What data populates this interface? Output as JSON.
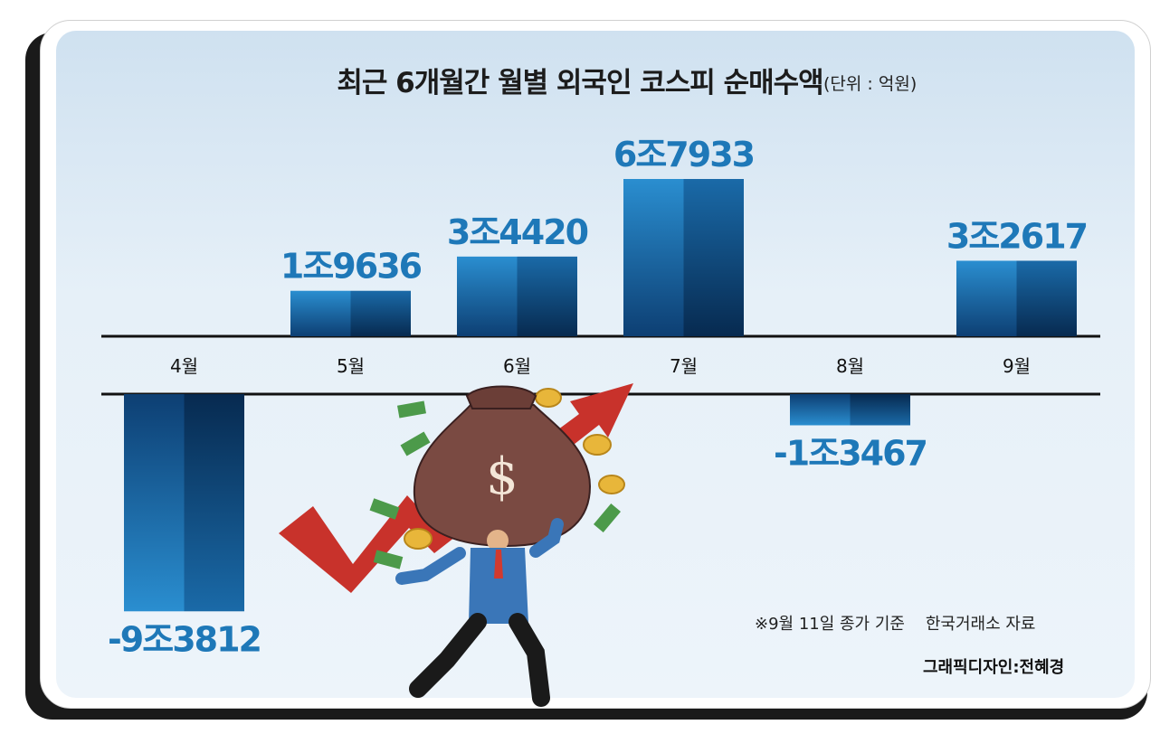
{
  "header": {
    "title": "최근 6개월간 월별 외국인 코스피 순매수액",
    "unit": "(단위 : 억원)"
  },
  "chart_data": {
    "type": "bar",
    "title": "최근 6개월간 월별 외국인 코스피 순매수액",
    "unit": "억원",
    "categories": [
      "4월",
      "5월",
      "6월",
      "7월",
      "8월",
      "9월"
    ],
    "values": [
      -93812,
      19636,
      34420,
      67933,
      -13467,
      32617
    ],
    "value_labels": [
      "-9조3812",
      "1조9636",
      "3조4420",
      "6조7933",
      "-1조3467",
      "3조2617"
    ],
    "colors": {
      "bar_light": "#2a86c8",
      "bar_dark": "#0b2d55",
      "label": "#1e78b8"
    }
  },
  "footer": {
    "note": "※9월 11일 종가 기준    한국거래소 자료",
    "credit": "그래픽디자인:전혜경"
  },
  "illustration": {
    "icon": "man-carrying-money-bag-with-rising-arrow-icon",
    "bag_symbol": "$"
  }
}
